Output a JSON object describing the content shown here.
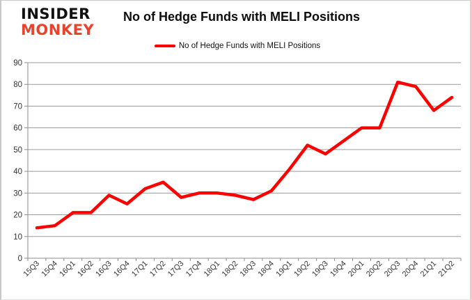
{
  "branding": {
    "line1": "INSIDER",
    "line2": "MONKEY"
  },
  "header": {
    "title": "No of Hedge Funds with MELI Positions"
  },
  "legend": {
    "label": "No of Hedge Funds with MELI Positions"
  },
  "colors": {
    "series": "#ff0000",
    "grid": "#9a9a9a",
    "axis": "#8c8c8c",
    "tick_text": "#333333",
    "logo_red": "#e8432d",
    "logo_black": "#111111"
  },
  "chart_data": {
    "type": "line",
    "title": "No of Hedge Funds with MELI Positions",
    "xlabel": "",
    "ylabel": "",
    "categories": [
      "15Q3",
      "15Q4",
      "16Q1",
      "16Q2",
      "16Q3",
      "16Q4",
      "17Q1",
      "17Q2",
      "17Q3",
      "17Q4",
      "18Q1",
      "18Q2",
      "18Q3",
      "18Q4",
      "19Q1",
      "19Q2",
      "19Q3",
      "19Q4",
      "20Q1",
      "20Q2",
      "20Q3",
      "20Q4",
      "21Q1",
      "21Q2"
    ],
    "series": [
      {
        "name": "No of Hedge Funds with MELI Positions",
        "values": [
          14,
          15,
          21,
          21,
          29,
          25,
          32,
          35,
          28,
          30,
          30,
          29,
          27,
          31,
          41,
          52,
          48,
          54,
          60,
          60,
          81,
          79,
          68,
          74
        ]
      }
    ],
    "ylim": [
      0,
      90
    ],
    "ytick_step": 10,
    "grid": true,
    "legend_position": "top"
  }
}
